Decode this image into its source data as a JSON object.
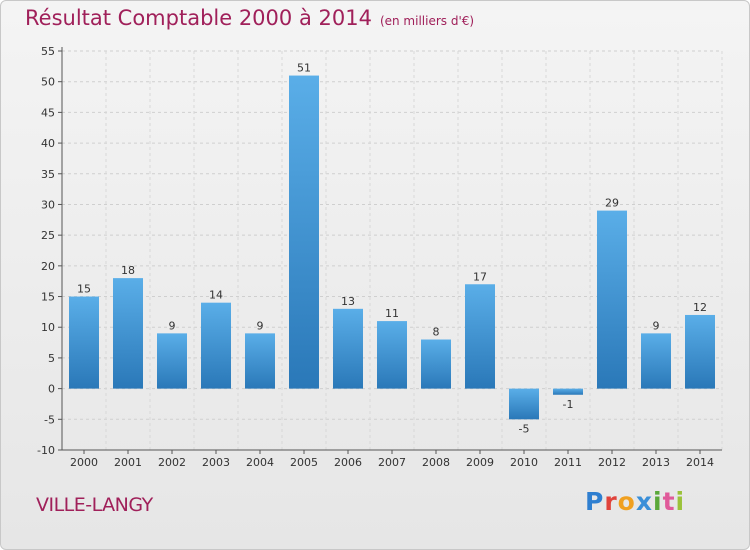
{
  "title": "Résultat Comptable 2000 à 2014",
  "unit_label": "(en milliers d'€)",
  "city": "VILLE-LANGY",
  "logo_text": "Proxiti",
  "colors": {
    "title": "#a0205a",
    "bar_top": "#5aaee8",
    "bar_bottom": "#2a78b8"
  },
  "chart_data": {
    "type": "bar",
    "title": "Résultat Comptable 2000 à 2014",
    "categories": [
      "2000",
      "2001",
      "2002",
      "2003",
      "2004",
      "2005",
      "2006",
      "2007",
      "2008",
      "2009",
      "2010",
      "2011",
      "2012",
      "2013",
      "2014"
    ],
    "values": [
      15,
      18,
      9,
      14,
      9,
      51,
      13,
      11,
      8,
      17,
      -5,
      -1,
      29,
      9,
      12
    ],
    "ylim": [
      -10,
      55
    ],
    "yticks": [
      -10,
      -5,
      0,
      5,
      10,
      15,
      20,
      25,
      30,
      35,
      40,
      45,
      50,
      55
    ],
    "xlabel": "",
    "ylabel": "",
    "grid": true
  }
}
